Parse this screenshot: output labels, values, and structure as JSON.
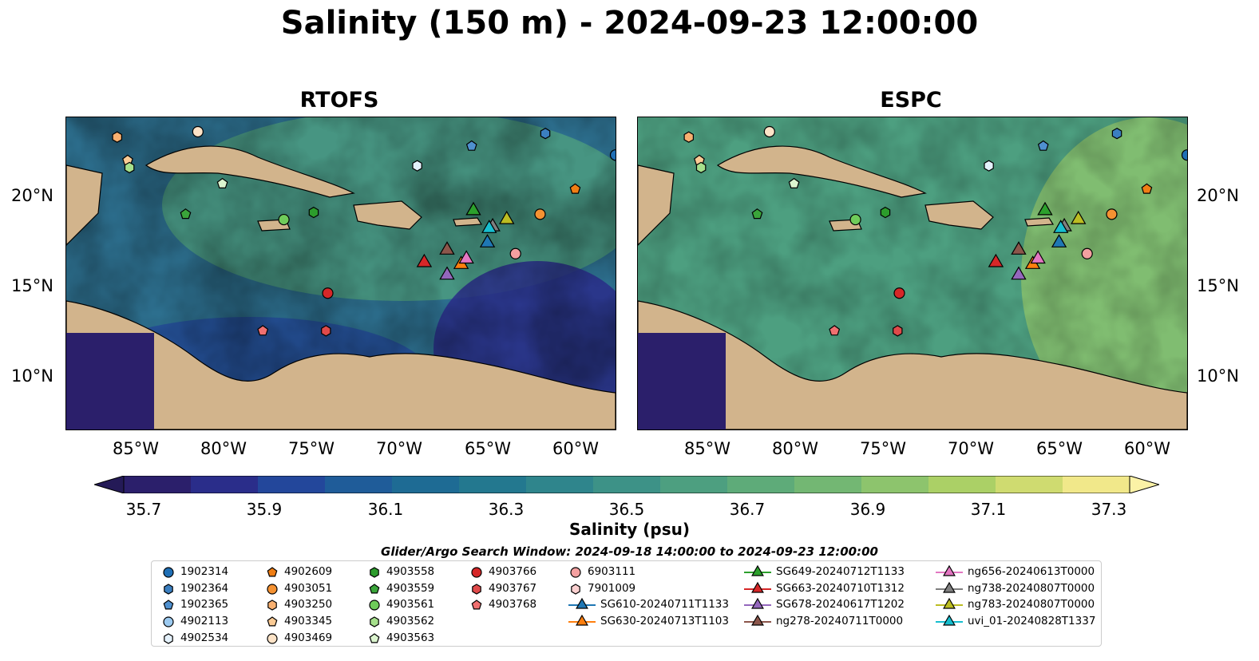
{
  "title": "Salinity (150 m) - 2024-09-23 12:00:00",
  "panels": [
    {
      "title": "RTOFS"
    },
    {
      "title": "ESPC"
    }
  ],
  "lat_ticks": [
    "20°N",
    "15°N",
    "10°N"
  ],
  "lon_ticks": [
    "85°W",
    "80°W",
    "75°W",
    "70°W",
    "65°W",
    "60°W"
  ],
  "colorbar": {
    "tick_labels": [
      "35.7",
      "35.9",
      "36.1",
      "36.3",
      "36.5",
      "36.7",
      "36.9",
      "37.1",
      "37.3"
    ],
    "label": "Salinity (psu)",
    "colors": [
      "#2b1f6b",
      "#2a2d8a",
      "#23479b",
      "#1f5c99",
      "#1e6b94",
      "#23788f",
      "#2f858c",
      "#3d9287",
      "#4d9f80",
      "#5eab79",
      "#73b773",
      "#8dc46d",
      "#abd066",
      "#cfdb70",
      "#f1e88a"
    ]
  },
  "search_window": "Glider/Argo Search Window: 2024-09-18 14:00:00 to 2024-09-23 12:00:00",
  "legend": [
    {
      "label": "1902314",
      "marker": "circle",
      "color": "#1f6fb5"
    },
    {
      "label": "1902364",
      "marker": "hexagon",
      "color": "#3b7fc0"
    },
    {
      "label": "1902365",
      "marker": "pentagon",
      "color": "#4f90cf"
    },
    {
      "label": "4902113",
      "marker": "circle",
      "color": "#9ccaf0"
    },
    {
      "label": "4902534",
      "marker": "hexagon",
      "color": "#e4f1fb"
    },
    {
      "label": "4902609",
      "marker": "pentagon",
      "color": "#f07e14"
    },
    {
      "label": "4903051",
      "marker": "circle",
      "color": "#f59232"
    },
    {
      "label": "4903250",
      "marker": "hexagon",
      "color": "#f8b070"
    },
    {
      "label": "4903345",
      "marker": "pentagon",
      "color": "#fbcb95"
    },
    {
      "label": "4903469",
      "marker": "circle",
      "color": "#fde3c7"
    },
    {
      "label": "4903558",
      "marker": "hexagon",
      "color": "#2c9c2c"
    },
    {
      "label": "4903559",
      "marker": "pentagon",
      "color": "#3aa53a"
    },
    {
      "label": "4903561",
      "marker": "circle",
      "color": "#6fcc5a"
    },
    {
      "label": "4903562",
      "marker": "hexagon",
      "color": "#a6e08c"
    },
    {
      "label": "4903563",
      "marker": "pentagon",
      "color": "#dcf5cf"
    },
    {
      "label": "4903766",
      "marker": "circle",
      "color": "#d62728"
    },
    {
      "label": "4903767",
      "marker": "hexagon",
      "color": "#e04a4a"
    },
    {
      "label": "4903768",
      "marker": "pentagon",
      "color": "#f07070"
    },
    {
      "label": "6903111",
      "marker": "circle",
      "color": "#f4a0a0"
    },
    {
      "label": "7901009",
      "marker": "hexagon",
      "color": "#fbd0d0"
    },
    {
      "label": "SG610-20240711T1133",
      "marker": "triangle",
      "color": "#1f77b4"
    },
    {
      "label": "SG630-20240713T1103",
      "marker": "triangle",
      "color": "#ff7f0e"
    },
    {
      "label": "SG649-20240712T1133",
      "marker": "triangle",
      "color": "#2ca02c"
    },
    {
      "label": "SG663-20240710T1312",
      "marker": "triangle",
      "color": "#d62728"
    },
    {
      "label": "SG678-20240617T1202",
      "marker": "triangle",
      "color": "#9467bd"
    },
    {
      "label": "ng278-20240711T0000",
      "marker": "triangle",
      "color": "#8c564b"
    },
    {
      "label": "ng656-20240613T0000",
      "marker": "triangle",
      "color": "#e377c2"
    },
    {
      "label": "ng738-20240807T0000",
      "marker": "triangle",
      "color": "#7f7f7f"
    },
    {
      "label": "ng783-20240807T0000",
      "marker": "triangle",
      "color": "#bcbd22"
    },
    {
      "label": "uvi_01-20240828T1337",
      "marker": "triangle",
      "color": "#17becf"
    }
  ],
  "map_markers": [
    {
      "id": "1902314",
      "lon": -57.8,
      "lat": 22.3
    },
    {
      "id": "1902364",
      "lon": -61.8,
      "lat": 23.5
    },
    {
      "id": "1902365",
      "lon": -66.0,
      "lat": 22.8
    },
    {
      "id": "4902534",
      "lon": -69.1,
      "lat": 21.7
    },
    {
      "id": "4902609",
      "lon": -60.1,
      "lat": 20.4
    },
    {
      "id": "4903051",
      "lon": -62.1,
      "lat": 19.0
    },
    {
      "id": "4903250",
      "lon": -86.2,
      "lat": 23.3
    },
    {
      "id": "4903345",
      "lon": -85.6,
      "lat": 22.0
    },
    {
      "id": "4903469",
      "lon": -81.6,
      "lat": 23.6
    },
    {
      "id": "4903558",
      "lon": -75.0,
      "lat": 19.1
    },
    {
      "id": "4903559",
      "lon": -82.3,
      "lat": 19.0
    },
    {
      "id": "4903561",
      "lon": -76.7,
      "lat": 18.7
    },
    {
      "id": "4903562",
      "lon": -85.5,
      "lat": 21.6
    },
    {
      "id": "4903563",
      "lon": -80.2,
      "lat": 20.7
    },
    {
      "id": "4903766",
      "lon": -74.2,
      "lat": 14.6
    },
    {
      "id": "4903767",
      "lon": -74.3,
      "lat": 12.5
    },
    {
      "id": "4903768",
      "lon": -77.9,
      "lat": 12.5
    },
    {
      "id": "6903111",
      "lon": -63.5,
      "lat": 16.8
    },
    {
      "id": "SG610-20240711T1133",
      "lon": -65.1,
      "lat": 17.4
    },
    {
      "id": "SG630-20240713T1103",
      "lon": -66.6,
      "lat": 16.2
    },
    {
      "id": "SG649-20240712T1133",
      "lon": -65.9,
      "lat": 19.2
    },
    {
      "id": "SG663-20240710T1312",
      "lon": -68.7,
      "lat": 16.3
    },
    {
      "id": "SG678-20240617T1202",
      "lon": -67.4,
      "lat": 15.6
    },
    {
      "id": "ng278-20240711T0000",
      "lon": -67.4,
      "lat": 17.0
    },
    {
      "id": "ng656-20240613T0000",
      "lon": -66.3,
      "lat": 16.5
    },
    {
      "id": "ng738-20240807T0000",
      "lon": -64.8,
      "lat": 18.3
    },
    {
      "id": "ng783-20240807T0000",
      "lon": -64.0,
      "lat": 18.7
    },
    {
      "id": "uvi_01-20240828T1337",
      "lon": -65.0,
      "lat": 18.2
    }
  ]
}
